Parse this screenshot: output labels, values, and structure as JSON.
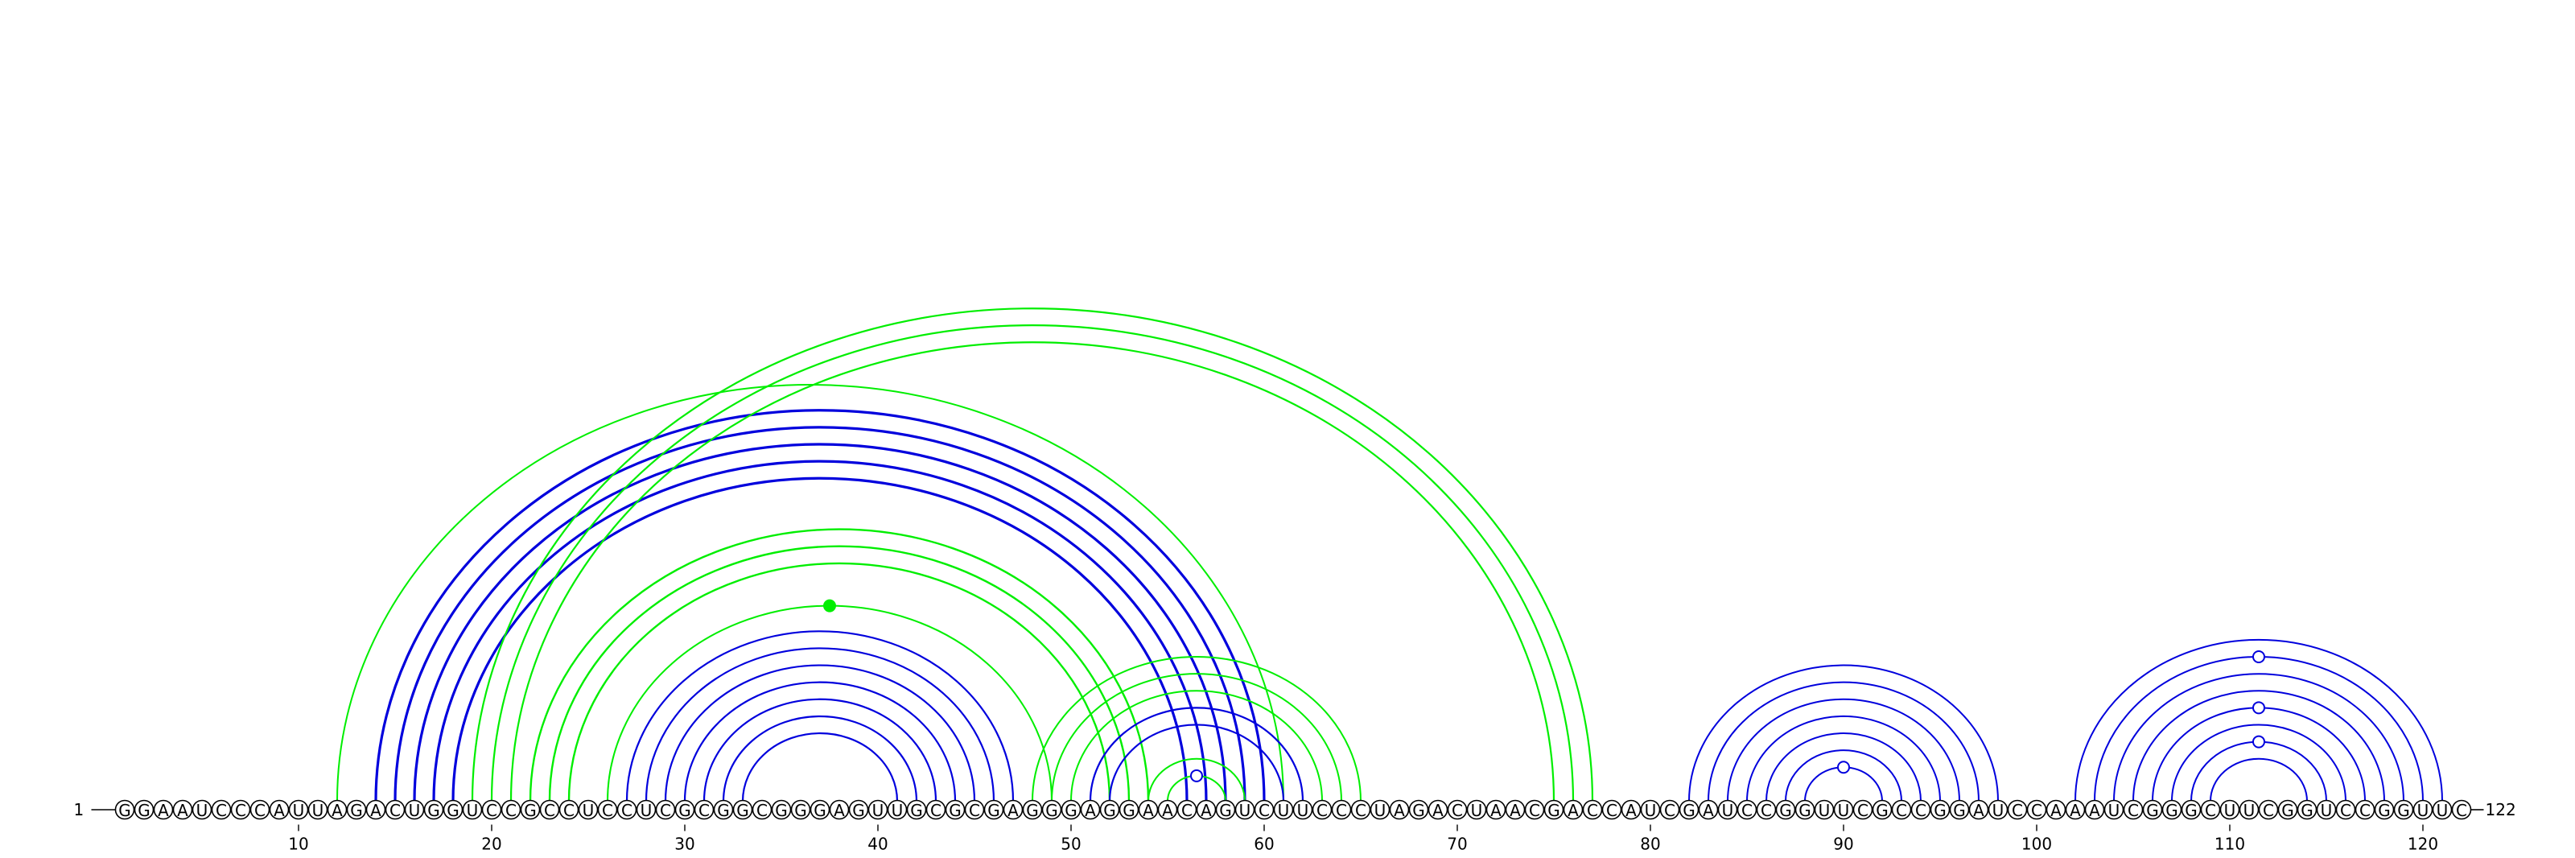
{
  "sequence": "GGAAUCCCAUUAGACUGGUCCGCCUCCUCGCGGCGGGAGUUGCGCGAGGGAGGAACAGUCUUCCCUAGACUAACGACCAUCGAUCCGGUUCGCCGGAUCCAAAUCGGGCUUCGGUCCGGUUC",
  "start_label": "1",
  "end_label": "122",
  "ticks": [
    {
      "pos": 10,
      "label": "10"
    },
    {
      "pos": 20,
      "label": "20"
    },
    {
      "pos": 30,
      "label": "30"
    },
    {
      "pos": 40,
      "label": "40"
    },
    {
      "pos": 50,
      "label": "50"
    },
    {
      "pos": 60,
      "label": "60"
    },
    {
      "pos": 70,
      "label": "70"
    },
    {
      "pos": 80,
      "label": "80"
    },
    {
      "pos": 90,
      "label": "90"
    },
    {
      "pos": 100,
      "label": "100"
    },
    {
      "pos": 110,
      "label": "110"
    },
    {
      "pos": 120,
      "label": "120"
    }
  ],
  "colors": {
    "blue": "#0000dd",
    "green": "#00ee00"
  },
  "arc_groups": [
    {
      "color": "blue",
      "pairs": [
        [
          14,
          60
        ],
        [
          15,
          59
        ],
        [
          16,
          58
        ],
        [
          17,
          57
        ],
        [
          18,
          56
        ]
      ],
      "width": 3.2
    },
    {
      "color": "green",
      "pairs": [
        [
          12,
          61
        ]
      ],
      "width": 2.0
    },
    {
      "color": "green",
      "pairs": [
        [
          19,
          77
        ],
        [
          20,
          76
        ],
        [
          21,
          75
        ]
      ],
      "width": 2.2
    },
    {
      "color": "green",
      "pairs": [
        [
          22,
          54
        ],
        [
          23,
          53
        ],
        [
          24,
          52
        ]
      ],
      "width": 2.4
    },
    {
      "color": "green",
      "pairs": [
        [
          26,
          49
        ]
      ],
      "width": 2.0
    },
    {
      "color": "blue",
      "pairs": [
        [
          27,
          47
        ],
        [
          28,
          46
        ],
        [
          29,
          45
        ],
        [
          30,
          44
        ],
        [
          31,
          43
        ],
        [
          32,
          42
        ],
        [
          33,
          41
        ]
      ],
      "width": 2.2
    },
    {
      "color": "green",
      "pairs": [
        [
          48,
          65
        ],
        [
          49,
          64
        ],
        [
          50,
          63
        ]
      ],
      "width": 2.0
    },
    {
      "color": "blue",
      "pairs": [
        [
          51,
          62
        ],
        [
          52,
          61
        ]
      ],
      "width": 2.2
    },
    {
      "color": "green",
      "pairs": [
        [
          54,
          59
        ],
        [
          55,
          58
        ]
      ],
      "width": 2.0
    },
    {
      "color": "blue",
      "pairs": [
        [
          82,
          98
        ],
        [
          83,
          97
        ],
        [
          84,
          96
        ],
        [
          85,
          95
        ],
        [
          86,
          94
        ],
        [
          87,
          93
        ],
        [
          88,
          92
        ]
      ],
      "width": 2.0
    },
    {
      "color": "blue",
      "pairs": [
        [
          102,
          121
        ],
        [
          103,
          120
        ],
        [
          104,
          119
        ],
        [
          105,
          118
        ],
        [
          106,
          117
        ],
        [
          107,
          116
        ],
        [
          108,
          115
        ],
        [
          109,
          114
        ]
      ],
      "width": 2.0
    }
  ],
  "markers": [
    {
      "pair": [
        26,
        49
      ],
      "color": "green",
      "filled": true
    },
    {
      "pair": [
        55,
        58
      ],
      "color": "blue",
      "filled": false
    },
    {
      "pair": [
        88,
        92
      ],
      "color": "blue",
      "filled": false
    },
    {
      "pair": [
        103,
        120
      ],
      "color": "blue",
      "filled": false
    },
    {
      "pair": [
        106,
        117
      ],
      "color": "blue",
      "filled": false
    },
    {
      "pair": [
        108,
        115
      ],
      "color": "blue",
      "filled": false
    }
  ]
}
